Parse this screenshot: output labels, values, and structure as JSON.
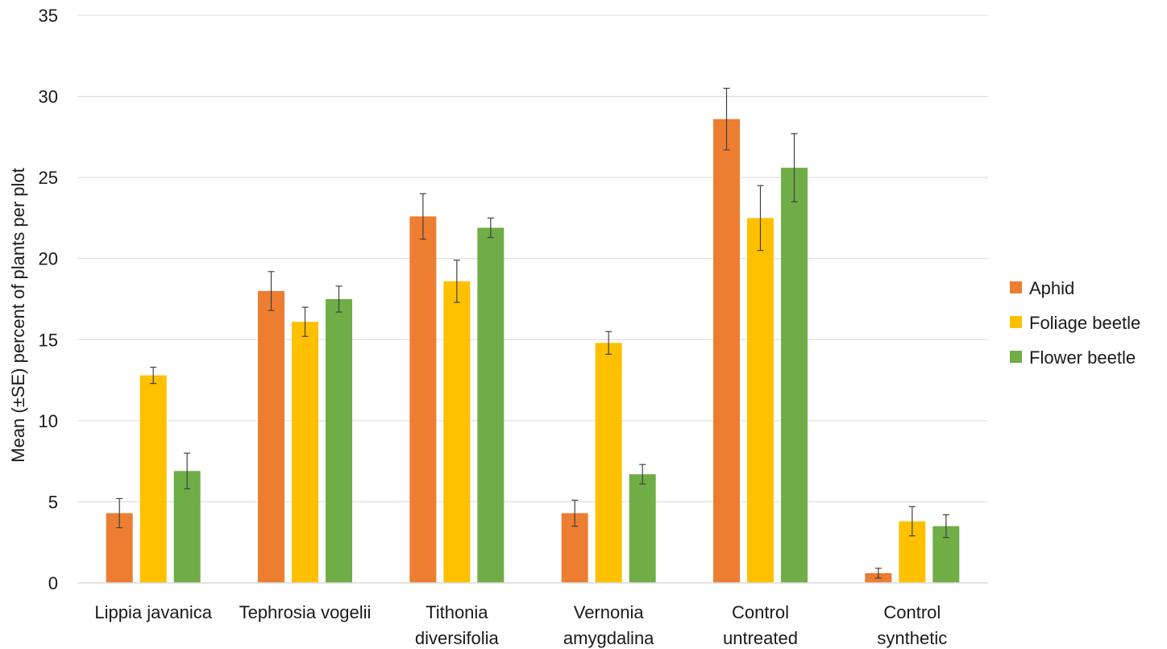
{
  "chart_data": {
    "type": "bar",
    "title": "",
    "xlabel": "",
    "ylabel": "Mean (±SE) percent of plants per plot",
    "ylim": [
      0,
      35
    ],
    "yticks": [
      0,
      5,
      10,
      15,
      20,
      25,
      30,
      35
    ],
    "grid": true,
    "legend_position": "right",
    "categories": [
      [
        "Lippia javanica"
      ],
      [
        "Tephrosia vogelii"
      ],
      [
        "Tithonia",
        "diversifolia"
      ],
      [
        "Vernonia",
        "amygdalina"
      ],
      [
        "Control",
        "untreated"
      ],
      [
        "Control",
        "synthetic"
      ]
    ],
    "series": [
      {
        "name": "Aphid",
        "color": "#ED7D31",
        "values": [
          4.3,
          18.0,
          22.6,
          4.3,
          28.6,
          0.6
        ],
        "errors": [
          0.9,
          1.2,
          1.4,
          0.8,
          1.9,
          0.3
        ]
      },
      {
        "name": "Foliage beetle",
        "color": "#FFC000",
        "values": [
          12.8,
          16.1,
          18.6,
          14.8,
          22.5,
          3.8
        ],
        "errors": [
          0.5,
          0.9,
          1.3,
          0.7,
          2.0,
          0.9
        ]
      },
      {
        "name": "Flower beetle",
        "color": "#70AD47",
        "values": [
          6.9,
          17.5,
          21.9,
          6.7,
          25.6,
          3.5
        ],
        "errors": [
          1.1,
          0.8,
          0.6,
          0.6,
          2.1,
          0.7
        ]
      }
    ]
  }
}
